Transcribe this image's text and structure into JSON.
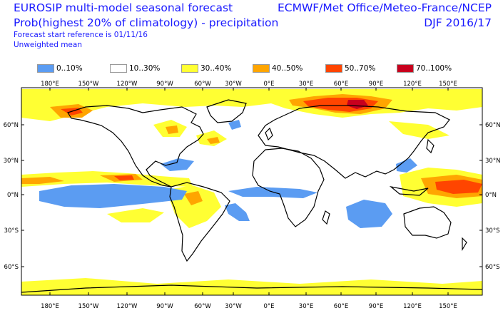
{
  "header": {
    "title": "EUROSIP multi-model seasonal forecast",
    "subtitle": "Prob(highest 20% of climatology) - precipitation",
    "start_ref": "Forecast start reference is 01/11/16",
    "mean_type": "Unweighted mean",
    "centres": "ECMWF/Met Office/Meteo-France/NCEP",
    "season": "DJF 2016/17"
  },
  "legend": [
    {
      "label": "0..10%",
      "color": "#5b9cf2"
    },
    {
      "label": "10..30%",
      "color": "#ffffff"
    },
    {
      "label": "30..40%",
      "color": "#ffff33"
    },
    {
      "label": "40..50%",
      "color": "#ffa500"
    },
    {
      "label": "50..70%",
      "color": "#ff4500"
    },
    {
      "label": "70..100%",
      "color": "#c8001e"
    }
  ],
  "axes": {
    "top_lon": [
      "180°E",
      "150°W",
      "120°W",
      "90°W",
      "60°W",
      "30°W",
      "0°E",
      "30°E",
      "60°E",
      "90°E",
      "120°E",
      "150°E"
    ],
    "bottom_lon": [
      "180°E",
      "150°W",
      "120°W",
      "90°W",
      "60°W",
      "30°W",
      "0°E",
      "30°E",
      "60°E",
      "90°E",
      "120°E",
      "150°E"
    ],
    "left_lat": [
      "60°N",
      "30°N",
      "0°N",
      "30°S",
      "60°S"
    ],
    "right_lat": [
      "60°N",
      "30°N",
      "0°N",
      "30°S",
      "60°S"
    ]
  }
}
